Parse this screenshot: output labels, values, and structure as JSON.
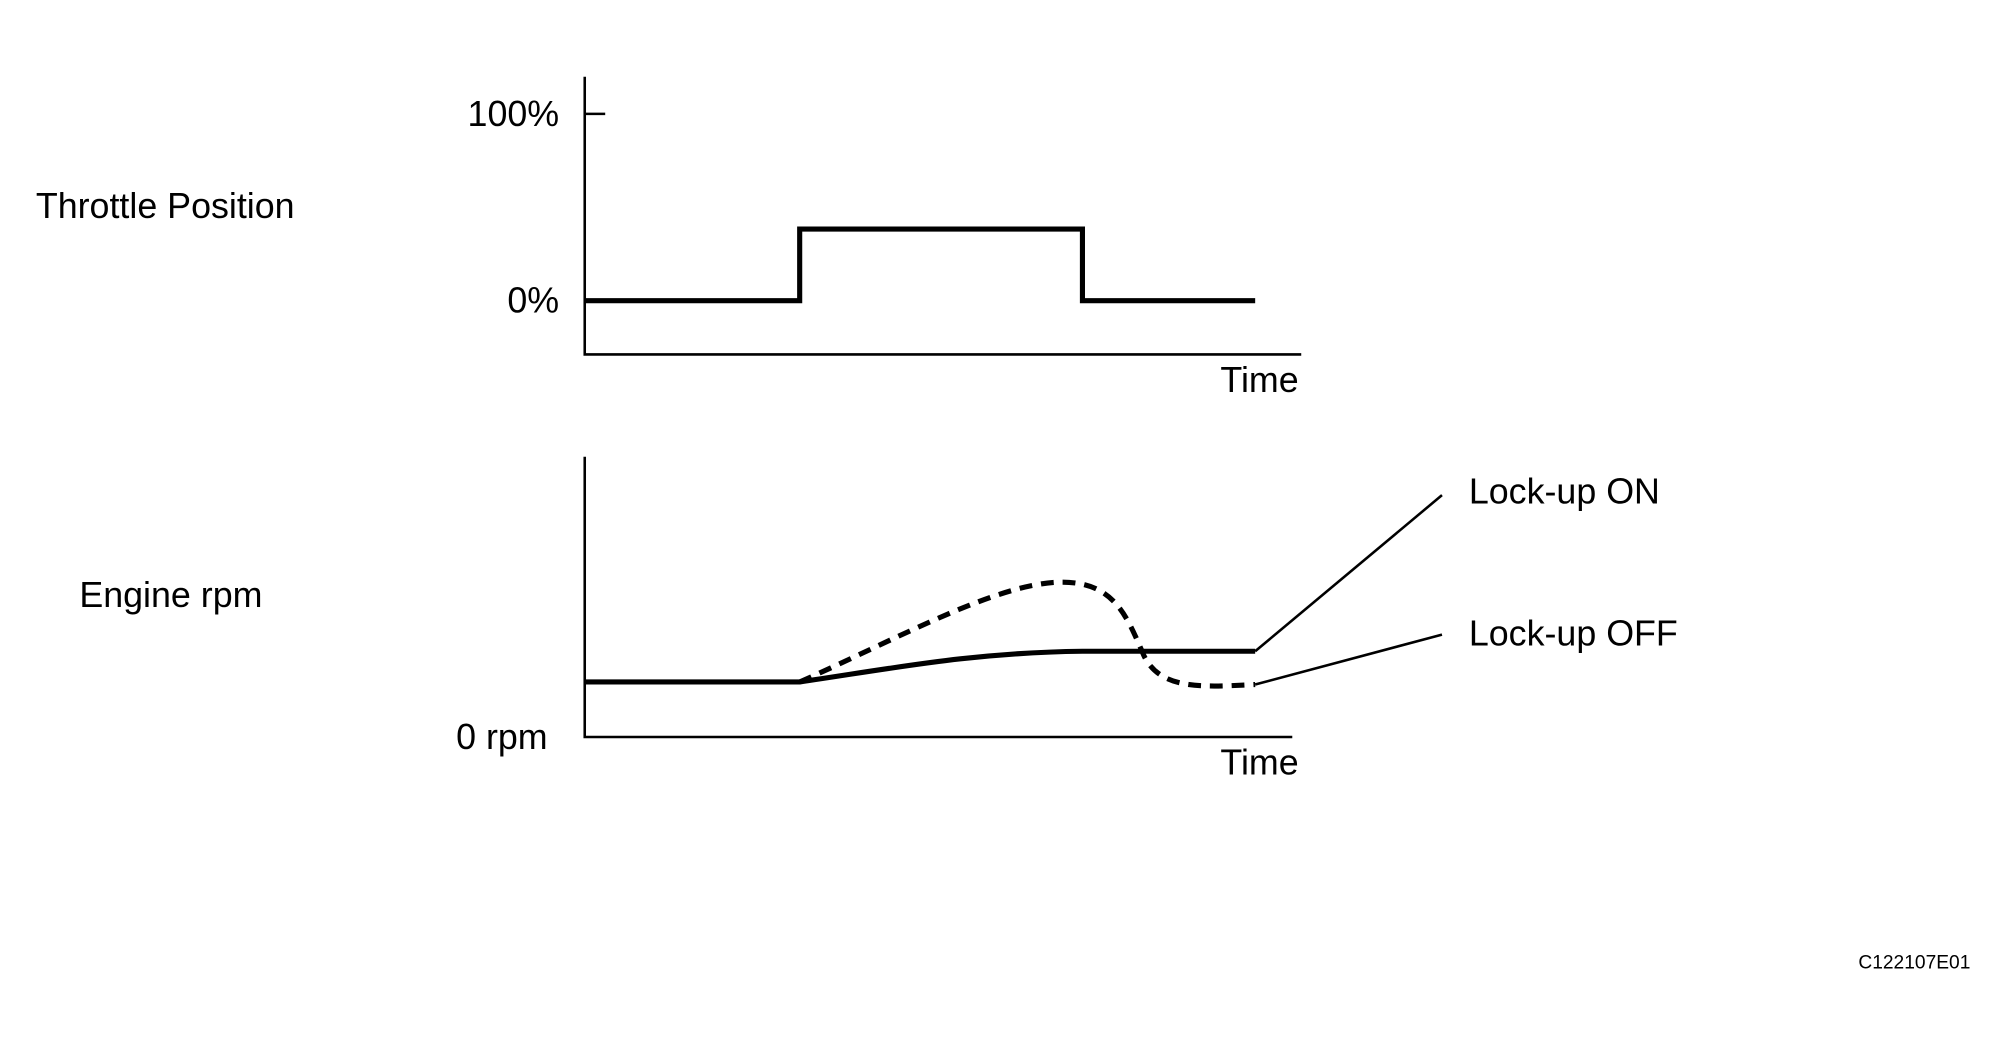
{
  "charts": [
    {
      "y_label": "Throttle Position",
      "ticks": [
        "100%",
        "0%"
      ],
      "x_label": "Time"
    },
    {
      "y_label": "Engine rpm",
      "ticks": [
        "0 rpm"
      ],
      "x_label": "Time",
      "callouts": [
        "Lock-up ON",
        "Lock-up OFF"
      ]
    }
  ],
  "figure_id": "C122107E01"
}
